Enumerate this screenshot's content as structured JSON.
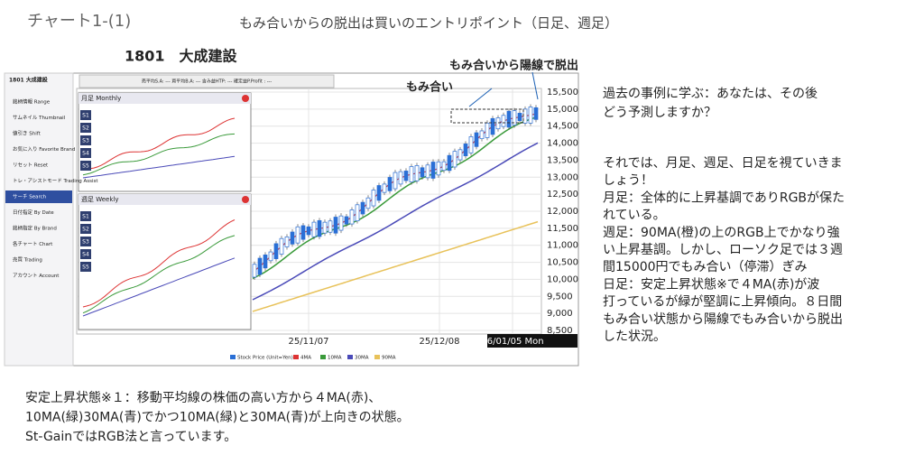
{
  "header": {
    "title": "チャート1-(1)",
    "subtitle": "もみ合いからの脱出は買いのエントリポイント（日足、週足）"
  },
  "screenshot": {
    "stock": "1801　大成建設",
    "annotation_breakout": "もみ合いから陽線で脱出",
    "annotation_range": "もみ合い",
    "status_bar": "売平均S.A: --- 買平均B.A: --- 含み益HTP: --- 確定益P.Profit : ---",
    "app_title": "1801 大成建設",
    "sidebar": [
      "銘柄情報 Range",
      "サムネイル Thumbnail",
      "値引き Shift",
      "お気に入り Favorite Brand",
      "リセット Reset",
      "トレ・アシストモード Trading Assist",
      "サーチ Search",
      "日付指定 By Date",
      "銘柄指定 By Brand",
      "各チャート Chart",
      "売買 Trading",
      "アカウント Account"
    ],
    "monthly": "月足 Monthly",
    "weekly": "週足 Weekly",
    "signals": [
      "S1",
      "S2",
      "S3",
      "S4",
      "S5"
    ],
    "yaxis": [
      "15,500",
      "15,000",
      "14,500",
      "14,000",
      "13,500",
      "13,000",
      "12,500",
      "12,000",
      "11,500",
      "11,000",
      "10,500",
      "10,000",
      "9,500",
      "9,000",
      "8,500"
    ],
    "xaxis": [
      "25/11/07",
      "25/12/08",
      "26/01/05 Mon"
    ],
    "legend": [
      "Stock Price (Unit=Yen)",
      "4MA",
      "10MA",
      "30MA",
      "90MA"
    ]
  },
  "question": [
    "過去の事例に学ぶ：あなたは、その後",
    "どう予測しますか？"
  ],
  "commentary": [
    "それでは、月足、週足、日足を視ていきま",
    "しょう！",
    "月足：全体的に上昇基調でありRGBが保た",
    "れている。",
    "週足：90MA(橙)の上のRGB上でかなり強",
    "い上昇基調。しかし、ローソク足では３週",
    "間15000円でもみ合い（停滞）ぎみ",
    "日足：安定上昇状態※で４MA(赤)が波",
    "打っているが緑が堅調に上昇傾向。８日間",
    "もみ合い状態から陽線でもみ合いから脱出",
    "した状況。"
  ],
  "footnote": [
    "安定上昇状態※１：移動平均線の株価の高い方から４MA(赤)、",
    "10MA(緑)30MA(青)でかつ10MA(緑)と30MA(青)が上向きの状態。",
    "St-GainではRGB法と言っています。"
  ]
}
